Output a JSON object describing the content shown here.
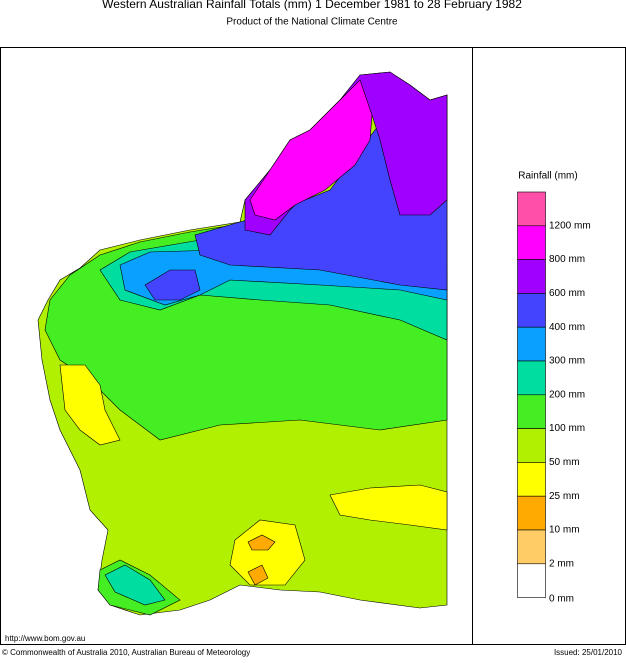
{
  "header": {
    "title": "Western Australian Rainfall Totals (mm) 1 December 1981 to 28 February 1982",
    "subtitle": "Product of the National Climate Centre"
  },
  "legend": {
    "title": "Rainfall (mm)",
    "items": [
      {
        "color": "#ff4fa8",
        "label": null
      },
      {
        "color": "#ff00ff",
        "label": "1200 mm"
      },
      {
        "color": "#a000ff",
        "label": "800 mm"
      },
      {
        "color": "#4444ff",
        "label": "600 mm"
      },
      {
        "color": "#0aa0ff",
        "label": "400 mm"
      },
      {
        "color": "#00dda0",
        "label": "300 mm"
      },
      {
        "color": "#44ee22",
        "label": "200 mm"
      },
      {
        "color": "#b0f000",
        "label": "100 mm"
      },
      {
        "color": "#ffff00",
        "label": "50 mm"
      },
      {
        "color": "#ffaa00",
        "label": "25 mm"
      },
      {
        "color": "#ffcc66",
        "label": "10 mm"
      },
      {
        "color": "#ffffff",
        "label": "2 mm"
      }
    ],
    "bottom_label": "0 mm"
  },
  "footer": {
    "url": "http://www.bom.gov.au",
    "copyright": "© Commonwealth of Australia 2010, Australian Bureau of Meteorology",
    "issued": "Issued: 25/01/2010"
  }
}
